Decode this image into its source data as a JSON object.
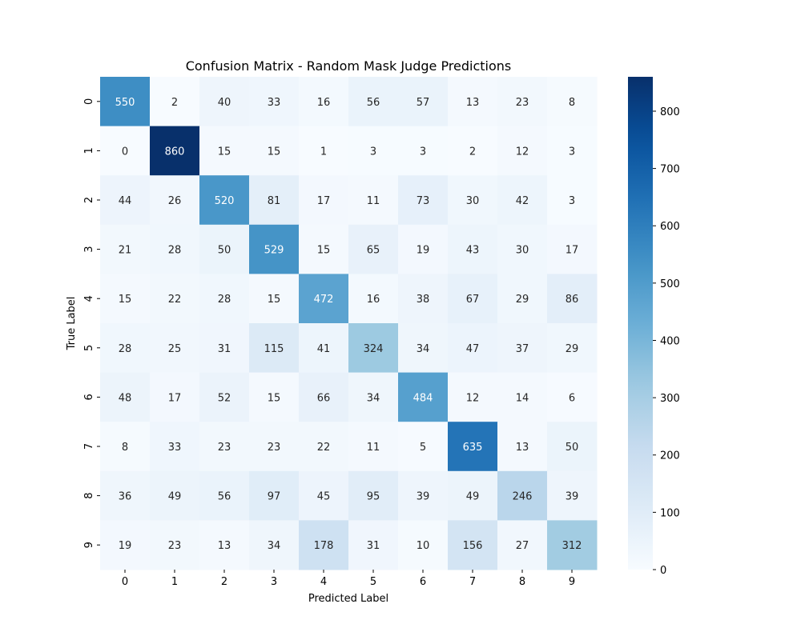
{
  "chart_data": {
    "type": "heatmap",
    "title": "Confusion Matrix - Random Mask Judge Predictions",
    "xlabel": "Predicted Label",
    "ylabel": "True Label",
    "x_categories": [
      "0",
      "1",
      "2",
      "3",
      "4",
      "5",
      "6",
      "7",
      "8",
      "9"
    ],
    "y_categories": [
      "0",
      "1",
      "2",
      "3",
      "4",
      "5",
      "6",
      "7",
      "8",
      "9"
    ],
    "values": [
      [
        550,
        2,
        40,
        33,
        16,
        56,
        57,
        13,
        23,
        8
      ],
      [
        0,
        860,
        15,
        15,
        1,
        3,
        3,
        2,
        12,
        3
      ],
      [
        44,
        26,
        520,
        81,
        17,
        11,
        73,
        30,
        42,
        3
      ],
      [
        21,
        28,
        50,
        529,
        15,
        65,
        19,
        43,
        30,
        17
      ],
      [
        15,
        22,
        28,
        15,
        472,
        16,
        38,
        67,
        29,
        86
      ],
      [
        28,
        25,
        31,
        115,
        41,
        324,
        34,
        47,
        37,
        29
      ],
      [
        48,
        17,
        52,
        15,
        66,
        34,
        484,
        12,
        14,
        6
      ],
      [
        8,
        33,
        23,
        23,
        22,
        11,
        5,
        635,
        13,
        50
      ],
      [
        36,
        49,
        56,
        97,
        45,
        95,
        39,
        49,
        246,
        39
      ],
      [
        19,
        23,
        13,
        34,
        178,
        31,
        10,
        156,
        27,
        312
      ]
    ],
    "colorbar": {
      "colormap": "Blues",
      "range": [
        0,
        860
      ],
      "ticks": [
        0,
        100,
        200,
        300,
        400,
        500,
        600,
        700,
        800
      ]
    }
  }
}
